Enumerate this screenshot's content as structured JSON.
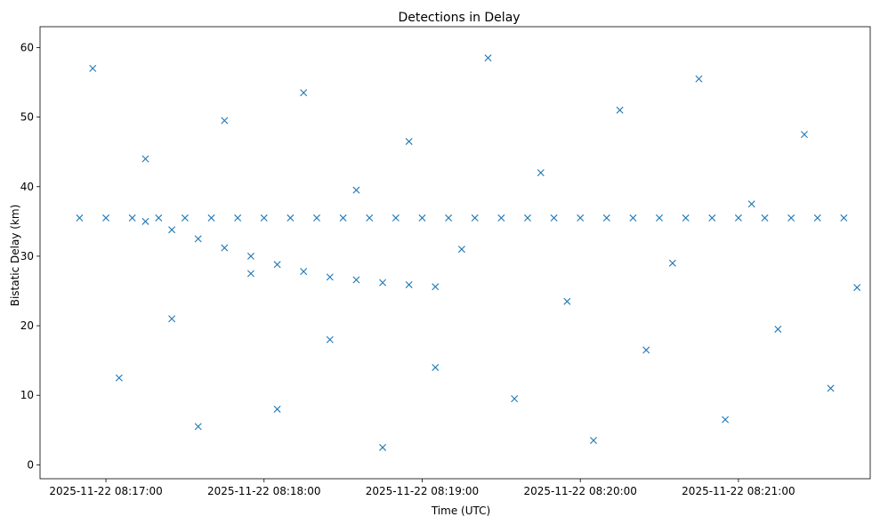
{
  "chart_data": {
    "type": "scatter",
    "title": "Detections in Delay",
    "xlabel": "Time (UTC)",
    "ylabel": "Bistatic Delay (km)",
    "x_ticks": [
      "2025-11-22 08:17:00",
      "2025-11-22 08:18:00",
      "2025-11-22 08:19:00",
      "2025-11-22 08:20:00",
      "2025-11-22 08:21:00"
    ],
    "y_ticks": [
      "0",
      "10",
      "20",
      "30",
      "40",
      "50",
      "60"
    ],
    "xlim": [
      "2025-11-22 08:16:35",
      "2025-11-22 08:21:50"
    ],
    "ylim": [
      -2,
      63
    ],
    "marker": "x",
    "color": "#1f77b4",
    "grid": false,
    "series": [
      {
        "x": [
          "2025-11-22 08:16:50",
          "2025-11-22 08:17:00",
          "2025-11-22 08:17:10",
          "2025-11-22 08:17:20",
          "2025-11-22 08:17:30",
          "2025-11-22 08:17:40",
          "2025-11-22 08:17:50",
          "2025-11-22 08:18:00",
          "2025-11-22 08:18:10",
          "2025-11-22 08:18:20",
          "2025-11-22 08:18:30",
          "2025-11-22 08:18:40",
          "2025-11-22 08:18:50",
          "2025-11-22 08:19:00",
          "2025-11-22 08:19:10",
          "2025-11-22 08:19:20",
          "2025-11-22 08:19:30",
          "2025-11-22 08:19:40",
          "2025-11-22 08:19:50",
          "2025-11-22 08:20:00",
          "2025-11-22 08:20:10",
          "2025-11-22 08:20:20",
          "2025-11-22 08:20:30",
          "2025-11-22 08:20:40",
          "2025-11-22 08:20:50",
          "2025-11-22 08:21:00",
          "2025-11-22 08:21:10",
          "2025-11-22 08:21:20",
          "2025-11-22 08:21:30",
          "2025-11-22 08:21:40"
        ],
        "y": [
          35.5,
          35.5,
          35.5,
          35.5,
          35.5,
          35.5,
          35.5,
          35.5,
          35.5,
          35.5,
          35.5,
          35.5,
          35.5,
          35.5,
          35.5,
          35.5,
          35.5,
          35.5,
          35.5,
          35.5,
          35.5,
          35.5,
          35.5,
          35.5,
          35.5,
          35.5,
          35.5,
          35.5,
          35.5,
          35.5
        ]
      },
      {
        "x": [
          "2025-11-22 08:17:15",
          "2025-11-22 08:17:25",
          "2025-11-22 08:17:35",
          "2025-11-22 08:17:45",
          "2025-11-22 08:17:55",
          "2025-11-22 08:18:05",
          "2025-11-22 08:18:15",
          "2025-11-22 08:18:25",
          "2025-11-22 08:18:35",
          "2025-11-22 08:18:45",
          "2025-11-22 08:18:55",
          "2025-11-22 08:19:05"
        ],
        "y": [
          35.0,
          33.8,
          32.5,
          31.2,
          30.0,
          28.8,
          27.8,
          27.0,
          26.6,
          26.2,
          25.9,
          25.6
        ]
      },
      {
        "x": [
          "2025-11-22 08:16:55",
          "2025-11-22 08:17:05",
          "2025-11-22 08:17:15",
          "2025-11-22 08:17:25",
          "2025-11-22 08:17:35",
          "2025-11-22 08:17:45",
          "2025-11-22 08:17:55",
          "2025-11-22 08:18:05",
          "2025-11-22 08:18:15",
          "2025-11-22 08:18:25",
          "2025-11-22 08:18:35",
          "2025-11-22 08:18:45",
          "2025-11-22 08:18:55",
          "2025-11-22 08:19:05",
          "2025-11-22 08:19:15",
          "2025-11-22 08:19:25",
          "2025-11-22 08:19:35",
          "2025-11-22 08:19:45",
          "2025-11-22 08:19:55",
          "2025-11-22 08:20:05",
          "2025-11-22 08:20:15",
          "2025-11-22 08:20:25",
          "2025-11-22 08:20:35",
          "2025-11-22 08:20:45",
          "2025-11-22 08:20:55",
          "2025-11-22 08:21:05",
          "2025-11-22 08:21:15",
          "2025-11-22 08:21:25",
          "2025-11-22 08:21:35",
          "2025-11-22 08:21:45"
        ],
        "y": [
          57.0,
          12.5,
          44.0,
          21.0,
          5.5,
          49.5,
          27.5,
          8.0,
          53.5,
          18.0,
          39.5,
          2.5,
          46.5,
          14.0,
          31.0,
          58.5,
          9.5,
          42.0,
          23.5,
          3.5,
          51.0,
          16.5,
          29.0,
          55.5,
          6.5,
          37.5,
          19.5,
          47.5,
          11.0,
          25.5
        ]
      }
    ]
  }
}
